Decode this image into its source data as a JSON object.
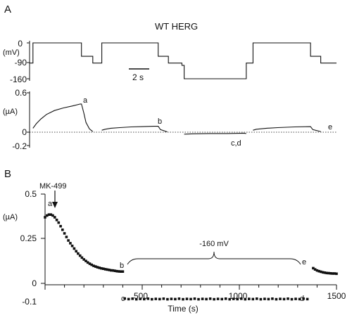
{
  "panels": {
    "a": "A",
    "b": "B"
  },
  "colors": {
    "ink": "#111111",
    "background": "#ffffff"
  },
  "chart_data": [
    {
      "type": "line",
      "panel": "A-voltage",
      "title": "WT HERG",
      "ylabel": "(mV)",
      "yticks": [
        "0",
        "-90",
        "-160"
      ],
      "ylim": [
        -170,
        10
      ],
      "scale_bar": "2 s",
      "series": [
        {
          "values_ms": [
            [
              0,
              -90
            ],
            [
              3,
              -90
            ],
            [
              3,
              0
            ],
            [
              46,
              0
            ],
            [
              46,
              -60
            ],
            [
              56,
              -60
            ],
            [
              56,
              -90
            ],
            [
              64,
              -90
            ],
            [
              64,
              0
            ],
            [
              114,
              0
            ],
            [
              114,
              -60
            ],
            [
              123,
              -60
            ],
            [
              123,
              -90
            ],
            [
              135,
              -90
            ],
            [
              135,
              -100
            ],
            [
              137,
              -100
            ],
            [
              137,
              -160
            ],
            [
              192,
              -160
            ],
            [
              192,
              -90
            ],
            [
              198,
              -90
            ],
            [
              198,
              0
            ],
            [
              249,
              0
            ],
            [
              249,
              -60
            ],
            [
              258,
              -60
            ],
            [
              258,
              -90
            ],
            [
              272,
              -90
            ]
          ]
        }
      ]
    },
    {
      "type": "line",
      "panel": "A-current",
      "ylabel": "(µA)",
      "yticks": [
        "0.6",
        "0",
        "-0.2"
      ],
      "ylim": [
        -0.2,
        0.6
      ],
      "annotations": [
        "a",
        "b",
        "c,d",
        "e"
      ],
      "series": [
        {
          "segments": [
            [
              [
                3,
                0.06
              ],
              [
                6,
                0.13
              ],
              [
                10,
                0.2
              ],
              [
                15,
                0.27
              ],
              [
                22,
                0.33
              ],
              [
                30,
                0.37
              ],
              [
                38,
                0.4
              ],
              [
                45,
                0.43
              ],
              [
                46,
                0.43
              ],
              [
                48,
                0.3
              ],
              [
                50,
                0.15
              ],
              [
                53,
                0.05
              ],
              [
                56,
                0.01
              ]
            ],
            [
              [
                64,
                0.03
              ],
              [
                67,
                0.045
              ],
              [
                72,
                0.06
              ],
              [
                80,
                0.07
              ],
              [
                90,
                0.08
              ],
              [
                100,
                0.085
              ],
              [
                110,
                0.09
              ],
              [
                114,
                0.09
              ],
              [
                116,
                0.04
              ],
              [
                122,
                0.005
              ]
            ],
            [
              [
                137,
                -0.03
              ],
              [
                145,
                -0.025
              ],
              [
                160,
                -0.02
              ],
              [
                175,
                -0.02
              ],
              [
                190,
                -0.015
              ],
              [
                192,
                -0.02
              ]
            ],
            [
              [
                198,
                0.03
              ],
              [
                201,
                0.045
              ],
              [
                210,
                0.06
              ],
              [
                220,
                0.07
              ],
              [
                235,
                0.08
              ],
              [
                249,
                0.085
              ],
              [
                251,
                0.04
              ],
              [
                258,
                0.01
              ]
            ]
          ]
        }
      ]
    },
    {
      "type": "scatter",
      "panel": "B",
      "xlabel": "Time (s)",
      "ylabel": "(µA)",
      "xticks": [
        "500",
        "1000",
        "1500"
      ],
      "yticks": [
        "0.5",
        "0.25",
        "0",
        "-0.1"
      ],
      "xlim": [
        0,
        1500
      ],
      "ylim": [
        -0.1,
        0.5
      ],
      "annotations": [
        "MK-499",
        "a",
        "b",
        "c",
        "d",
        "e",
        "-160 mV"
      ],
      "series": [
        {
          "points": [
            [
              0,
              0.37
            ],
            [
              10,
              0.38
            ],
            [
              20,
              0.385
            ],
            [
              30,
              0.385
            ],
            [
              40,
              0.38
            ],
            [
              50,
              0.37
            ],
            [
              60,
              0.355
            ],
            [
              70,
              0.34
            ],
            [
              80,
              0.32
            ],
            [
              90,
              0.3
            ],
            [
              100,
              0.28
            ],
            [
              110,
              0.26
            ],
            [
              120,
              0.24
            ],
            [
              130,
              0.225
            ],
            [
              140,
              0.21
            ],
            [
              150,
              0.195
            ],
            [
              160,
              0.18
            ],
            [
              170,
              0.167
            ],
            [
              180,
              0.155
            ],
            [
              190,
              0.144
            ],
            [
              200,
              0.134
            ],
            [
              210,
              0.125
            ],
            [
              220,
              0.117
            ],
            [
              230,
              0.11
            ],
            [
              240,
              0.104
            ],
            [
              250,
              0.098
            ],
            [
              260,
              0.094
            ],
            [
              270,
              0.09
            ],
            [
              280,
              0.087
            ],
            [
              290,
              0.084
            ],
            [
              300,
              0.082
            ],
            [
              310,
              0.079
            ],
            [
              320,
              0.077
            ],
            [
              330,
              0.075
            ],
            [
              340,
              0.073
            ],
            [
              350,
              0.072
            ],
            [
              360,
              0.07
            ],
            [
              370,
              0.068
            ],
            [
              380,
              0.067
            ],
            [
              390,
              0.066
            ],
            [
              400,
              0.066
            ]
          ]
        },
        {
          "points": [
            [
              410,
              -0.085
            ],
            [
              430,
              -0.088
            ],
            [
              450,
              -0.086
            ],
            [
              470,
              -0.089
            ],
            [
              490,
              -0.087
            ],
            [
              510,
              -0.088
            ],
            [
              530,
              -0.086
            ],
            [
              550,
              -0.089
            ],
            [
              570,
              -0.087
            ],
            [
              590,
              -0.088
            ],
            [
              610,
              -0.086
            ],
            [
              630,
              -0.089
            ],
            [
              650,
              -0.087
            ],
            [
              670,
              -0.088
            ],
            [
              690,
              -0.086
            ],
            [
              710,
              -0.089
            ],
            [
              730,
              -0.087
            ],
            [
              750,
              -0.088
            ],
            [
              770,
              -0.086
            ],
            [
              790,
              -0.089
            ],
            [
              810,
              -0.087
            ],
            [
              830,
              -0.088
            ],
            [
              850,
              -0.086
            ],
            [
              870,
              -0.089
            ],
            [
              890,
              -0.087
            ],
            [
              910,
              -0.088
            ],
            [
              930,
              -0.086
            ],
            [
              950,
              -0.089
            ],
            [
              970,
              -0.087
            ],
            [
              990,
              -0.088
            ],
            [
              1010,
              -0.086
            ],
            [
              1030,
              -0.089
            ],
            [
              1050,
              -0.087
            ],
            [
              1070,
              -0.088
            ],
            [
              1090,
              -0.086
            ],
            [
              1110,
              -0.089
            ],
            [
              1130,
              -0.087
            ],
            [
              1150,
              -0.088
            ],
            [
              1170,
              -0.086
            ],
            [
              1190,
              -0.089
            ],
            [
              1210,
              -0.087
            ],
            [
              1230,
              -0.088
            ],
            [
              1250,
              -0.086
            ],
            [
              1270,
              -0.089
            ],
            [
              1290,
              -0.087
            ],
            [
              1310,
              -0.088
            ],
            [
              1330,
              -0.086
            ],
            [
              1350,
              -0.088
            ]
          ]
        },
        {
          "points": [
            [
              1380,
              0.085
            ],
            [
              1390,
              0.078
            ],
            [
              1400,
              0.072
            ],
            [
              1410,
              0.068
            ],
            [
              1420,
              0.065
            ],
            [
              1430,
              0.062
            ],
            [
              1440,
              0.06
            ],
            [
              1450,
              0.058
            ],
            [
              1460,
              0.057
            ],
            [
              1470,
              0.056
            ],
            [
              1480,
              0.055
            ],
            [
              1490,
              0.055
            ],
            [
              1500,
              0.054
            ]
          ]
        }
      ]
    }
  ]
}
